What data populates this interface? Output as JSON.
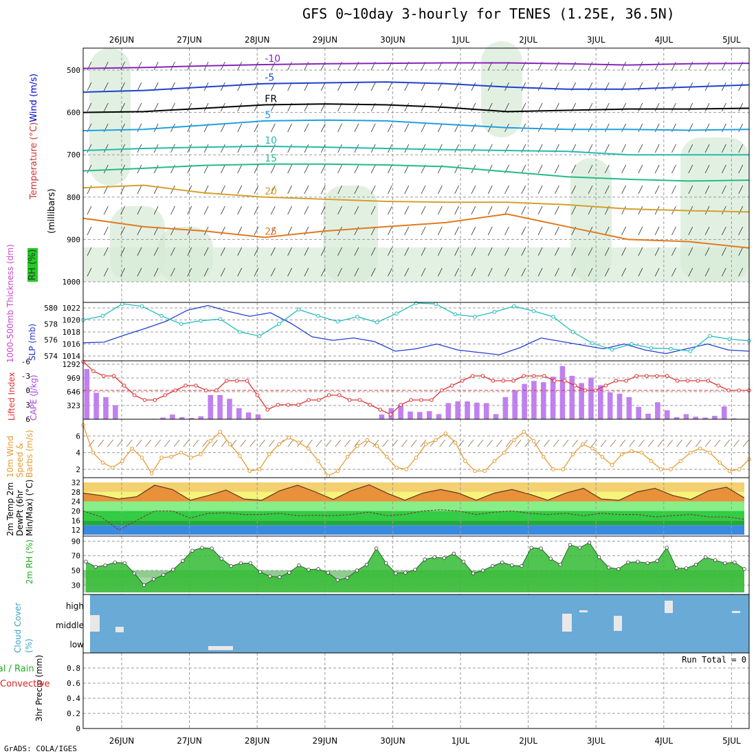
{
  "title": "GFS 0~10day 3-hourly for TENES (1.25E, 36.5N)",
  "footer": "GrADS: COLA/IGES",
  "run_total": "Run Total = 0",
  "colors": {
    "wind_label": "#0000cc",
    "temp_label": "#cc0000",
    "rh_label": "#00aa00",
    "slp": "#1f3fcf",
    "thickness": "#22bbbb",
    "lifted": "#dd3333",
    "cape": "#c080f0",
    "wind10": "#e69a2e",
    "cloud": "#6aaad6",
    "rh2m": "#22aa22",
    "precip_total": "#22aa22",
    "precip_conv": "#dd2222"
  },
  "chart_data": [
    {
      "type": "line",
      "panel": "upper_air",
      "labels": {
        "wind": "Wind (m/s)",
        "temperature": "Temperature (°C)",
        "rh": "RH (%)",
        "axis": "(millibars)"
      },
      "x_dates": [
        "26JUN",
        "27JUN",
        "28JUN",
        "29JUN",
        "30JUN",
        "1JUL",
        "2JUL",
        "3JUL",
        "4JUL",
        "5JUL"
      ],
      "yticks": [
        500,
        600,
        700,
        800,
        900,
        1000
      ],
      "isotherm_labels": [
        "-10",
        "-10",
        "-5",
        "-5",
        "FR",
        "FR",
        "FR",
        "5",
        "5",
        "10",
        "10",
        "15",
        "20",
        "25"
      ],
      "isotherms": [
        {
          "name": "-10",
          "color": "#8822bb",
          "p": [
            496,
            494,
            490,
            487,
            485,
            484,
            483,
            483,
            485,
            488,
            485,
            484
          ]
        },
        {
          "name": "-5",
          "color": "#1f3fcf",
          "p": [
            552,
            548,
            540,
            532,
            530,
            528,
            532,
            540,
            545,
            545,
            540,
            535
          ]
        },
        {
          "name": "FR",
          "color": "#000000",
          "p": [
            600,
            598,
            590,
            582,
            580,
            582,
            588,
            598,
            595,
            592,
            592,
            590
          ]
        },
        {
          "name": "5",
          "color": "#1ea0e0",
          "p": [
            643,
            640,
            630,
            620,
            618,
            620,
            628,
            636,
            640,
            640,
            642,
            640
          ]
        },
        {
          "name": "10",
          "color": "#22bbaa",
          "p": [
            690,
            685,
            682,
            680,
            682,
            685,
            688,
            690,
            692,
            700,
            700,
            700
          ]
        },
        {
          "name": "15",
          "color": "#22bb88",
          "p": [
            738,
            732,
            725,
            722,
            722,
            724,
            728,
            740,
            752,
            758,
            762,
            760
          ]
        },
        {
          "name": "20",
          "color": "#d4a02a",
          "p": [
            778,
            772,
            790,
            800,
            805,
            810,
            812,
            812,
            818,
            828,
            832,
            835
          ]
        },
        {
          "name": "25",
          "color": "#e07a1e",
          "p": [
            850,
            870,
            880,
            895,
            880,
            870,
            860,
            840,
            870,
            900,
            905,
            920
          ]
        }
      ]
    },
    {
      "type": "line",
      "panel": "slp_thickness",
      "labels": {
        "slp": "SLP (mb)",
        "thickness": "1000-500mb Thickness (dm)"
      },
      "slp_ticks": [
        1014,
        1016,
        1018,
        1020,
        1022
      ],
      "thick_ticks": [
        574,
        576,
        578,
        580
      ],
      "slp": [
        1016.2,
        1016.3,
        1017.5,
        1018.6,
        1019.8,
        1021.6,
        1022.4,
        1021.4,
        1020.6,
        1021.2,
        1019.4,
        1017.2,
        1016.6,
        1017.0,
        1016.4,
        1014.8,
        1015.2,
        1016.0,
        1015.0,
        1014.6,
        1014.2,
        1015.4,
        1017.0,
        1016.4,
        1015.8,
        1015.2,
        1016.0,
        1015.0,
        1014.4,
        1015.2,
        1016.0,
        1015.0,
        1014.8
      ],
      "thickness": [
        578.5,
        579.0,
        580.5,
        580.2,
        579.0,
        578.0,
        578.4,
        578.6,
        577.0,
        576.5,
        578.0,
        579.8,
        579.0,
        578.3,
        578.9,
        578.2,
        579.3,
        580.6,
        580.5,
        579.2,
        578.9,
        579.5,
        580.2,
        579.6,
        578.9,
        577.0,
        575.6,
        574.8,
        575.5,
        575.0,
        574.9,
        574.6,
        576.5,
        576.1,
        575.9
      ]
    },
    {
      "type": "bar",
      "panel": "cape_li",
      "labels": {
        "li": "Lifted Index",
        "cape": "CAPE (J/kg)"
      },
      "cape_ticks": [
        323,
        646,
        969,
        1292
      ],
      "li_ticks": [
        6,
        3,
        0,
        -3,
        -6
      ],
      "cape": [
        1180,
        620,
        520,
        330,
        0,
        0,
        0,
        10,
        40,
        110,
        50,
        30,
        70,
        570,
        570,
        480,
        260,
        160,
        110,
        0,
        0,
        0,
        0,
        0,
        0,
        0,
        0,
        0,
        0,
        0,
        5,
        110,
        260,
        350,
        180,
        170,
        190,
        120,
        380,
        420,
        420,
        390,
        380,
        120,
        520,
        680,
        830,
        900,
        870,
        1000,
        1250,
        1020,
        850,
        980,
        800,
        630,
        600,
        520,
        290,
        130,
        400,
        210,
        50,
        120,
        60,
        40,
        80,
        300,
        20,
        10
      ],
      "li": [
        -6,
        -4,
        -3,
        -3,
        -1,
        1,
        2,
        2,
        1,
        0,
        -1,
        -1,
        0,
        0,
        -2,
        -2,
        -2,
        1,
        4,
        3,
        3,
        3,
        2,
        2,
        1,
        1,
        2,
        2,
        3,
        4,
        5,
        3,
        2,
        2,
        2,
        0,
        -1,
        -2,
        -3,
        -3,
        -2,
        -2,
        -2,
        -3,
        -3,
        -3,
        -2,
        -2,
        -1,
        0,
        0,
        -1,
        -2,
        -2,
        -3,
        -3,
        -3,
        -3,
        -2,
        -2,
        -2,
        -2,
        -1,
        0,
        0,
        0
      ]
    },
    {
      "type": "line",
      "panel": "wind10m",
      "labels": {
        "title": "10m Wind Speed & Barbs (m/s)"
      },
      "yticks": [
        2,
        4,
        6
      ],
      "speed": [
        7.3,
        4.0,
        2.8,
        2.2,
        3.0,
        4.5,
        3.4,
        1.5,
        3.4,
        3.5,
        4.0,
        3.4,
        3.8,
        5.4,
        6.5,
        5.0,
        3.6,
        1.8,
        2.0,
        3.8,
        5.0,
        5.8,
        5.2,
        4.5,
        3.0,
        1.2,
        1.8,
        3.5,
        4.8,
        5.5,
        4.8,
        3.5,
        2.2,
        2.0,
        3.4,
        5.0,
        5.5,
        6.3,
        5.2,
        3.0,
        1.8,
        1.8,
        3.0,
        4.0,
        5.5,
        6.5,
        5.4,
        3.5,
        2.0,
        2.0,
        3.8,
        5.0,
        4.5,
        3.5,
        2.5,
        3.8,
        4.2,
        4.0,
        3.0,
        2.0,
        2.0,
        3.0,
        4.0,
        4.5,
        4.0,
        2.8,
        1.8,
        2.0,
        3.2
      ]
    },
    {
      "type": "line",
      "panel": "temp2m",
      "labels": {
        "title": "2m Temp 2m DewPt (6hr Min/Max) (°C)"
      },
      "yticks": [
        12,
        16,
        20,
        24,
        28,
        32
      ],
      "temp": [
        27.5,
        26.5,
        25.0,
        26.0,
        30.8,
        29.0,
        24.5,
        26.5,
        28.8,
        25.0,
        24.5,
        28.5,
        30.8,
        28.0,
        24.8,
        28.5,
        31.0,
        27.5,
        24.5,
        27.5,
        29.0,
        27.5,
        24.5,
        27.5,
        29.0,
        27.0,
        24.5,
        27.5,
        29.5,
        25.0,
        24.5,
        28.0,
        29.5,
        26.5,
        24.8,
        28.5,
        30.0,
        25.5
      ],
      "dewpt": [
        20.0,
        17.5,
        12.0,
        16.0,
        20.0,
        20.0,
        17.0,
        19.0,
        19.2,
        18.5,
        18.5,
        19.0,
        18.0,
        18.2,
        18.0,
        18.5,
        19.5,
        18.0,
        18.5,
        20.0,
        20.5,
        20.0,
        18.5,
        19.5,
        20.0,
        19.0,
        18.5,
        19.0,
        18.0,
        19.0,
        18.5,
        18.5,
        17.5,
        18.0,
        18.5,
        17.5,
        17.5,
        16.5
      ]
    },
    {
      "type": "area",
      "panel": "rh2m",
      "labels": {
        "title": "2m RH (%)"
      },
      "yticks": [
        30,
        50,
        70,
        90
      ],
      "rh": [
        62,
        55,
        57,
        61,
        60,
        46,
        30,
        38,
        44,
        51,
        63,
        77,
        81,
        80,
        66,
        56,
        60,
        60,
        48,
        42,
        41,
        47,
        57,
        51,
        52,
        47,
        37,
        40,
        50,
        58,
        80,
        60,
        46,
        47,
        51,
        65,
        68,
        67,
        73,
        62,
        46,
        50,
        56,
        61,
        57,
        56,
        81,
        80,
        66,
        58,
        85,
        81,
        88,
        68,
        54,
        52,
        61,
        62,
        60,
        63,
        81,
        53,
        53,
        58,
        68,
        64,
        60,
        61,
        52
      ]
    },
    {
      "type": "bar",
      "panel": "cloud",
      "labels": {
        "title": "Cloud Cover (%)",
        "high": "high",
        "middle": "middle",
        "low": "low"
      }
    },
    {
      "type": "bar",
      "panel": "precip",
      "labels": {
        "total": "Total / Rain",
        "convective": "Convective",
        "axis": "3hr Precip (mm)"
      },
      "yticks": [
        "0",
        "0.2",
        "0.4",
        "0.6",
        "0.8"
      ],
      "values": []
    }
  ]
}
